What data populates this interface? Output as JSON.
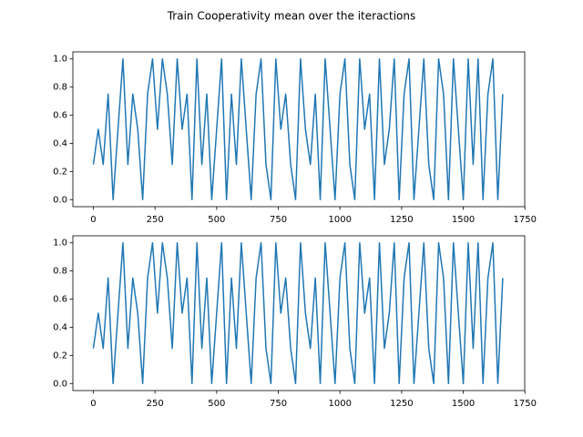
{
  "title": "Train Cooperativity mean over the iteractions",
  "chart_data": [
    {
      "type": "line",
      "color": "#1f77b4",
      "x": [
        0,
        20,
        40,
        60,
        80,
        100,
        120,
        140,
        160,
        180,
        200,
        220,
        240,
        260,
        280,
        300,
        320,
        340,
        360,
        380,
        400,
        420,
        440,
        460,
        480,
        500,
        520,
        540,
        560,
        580,
        600,
        620,
        640,
        660,
        680,
        700,
        720,
        740,
        760,
        780,
        800,
        820,
        840,
        860,
        880,
        900,
        920,
        940,
        960,
        980,
        1000,
        1020,
        1040,
        1060,
        1080,
        1100,
        1120,
        1140,
        1160,
        1180,
        1200,
        1220,
        1240,
        1260,
        1280,
        1300,
        1320,
        1340,
        1360,
        1380,
        1400,
        1420,
        1440,
        1460,
        1480,
        1500,
        1520,
        1540,
        1560,
        1580,
        1600,
        1620,
        1640,
        1660
      ],
      "values": [
        0.25,
        0.5,
        0.25,
        0.75,
        0,
        0.5,
        1,
        0.25,
        0.75,
        0.5,
        0,
        0.75,
        1,
        0.5,
        1,
        0.75,
        0.25,
        1,
        0.5,
        0.75,
        0,
        1,
        0.25,
        0.75,
        0,
        0.5,
        1,
        0,
        0.75,
        0.25,
        1,
        0.5,
        0,
        0.75,
        1,
        0.25,
        0,
        1,
        0.5,
        0.75,
        0.25,
        0,
        1,
        0.5,
        0.25,
        0.75,
        0,
        1,
        0.5,
        0,
        0.75,
        1,
        0.25,
        0,
        1,
        0.5,
        0.75,
        0,
        1,
        0.25,
        0.5,
        1,
        0,
        0.75,
        1,
        0,
        0.5,
        1,
        0.25,
        0,
        1,
        0.75,
        0,
        1,
        0.5,
        0,
        1,
        0.25,
        1,
        0,
        0.75,
        1,
        0,
        0.75
      ],
      "xlim": [
        -83,
        1749
      ],
      "ylim": [
        -0.05,
        1.05
      ],
      "xticks": [
        0,
        250,
        500,
        750,
        1000,
        1250,
        1500,
        1750
      ],
      "yticks": [
        {
          "value": 0,
          "label": "0.0"
        },
        0.2,
        0.4,
        0.6,
        0.8,
        {
          "value": 1,
          "label": "1.0"
        }
      ]
    },
    {
      "type": "line",
      "color": "#1f77b4",
      "x": [
        0,
        20,
        40,
        60,
        80,
        100,
        120,
        140,
        160,
        180,
        200,
        220,
        240,
        260,
        280,
        300,
        320,
        340,
        360,
        380,
        400,
        420,
        440,
        460,
        480,
        500,
        520,
        540,
        560,
        580,
        600,
        620,
        640,
        660,
        680,
        700,
        720,
        740,
        760,
        780,
        800,
        820,
        840,
        860,
        880,
        900,
        920,
        940,
        960,
        980,
        1000,
        1020,
        1040,
        1060,
        1080,
        1100,
        1120,
        1140,
        1160,
        1180,
        1200,
        1220,
        1240,
        1260,
        1280,
        1300,
        1320,
        1340,
        1360,
        1380,
        1400,
        1420,
        1440,
        1460,
        1480,
        1500,
        1520,
        1540,
        1560,
        1580,
        1600,
        1620,
        1640,
        1660
      ],
      "values": [
        0.25,
        0.5,
        0.25,
        0.75,
        0,
        0.5,
        1,
        0.25,
        0.75,
        0.5,
        0,
        0.75,
        1,
        0.5,
        1,
        0.75,
        0.25,
        1,
        0.5,
        0.75,
        0,
        1,
        0.25,
        0.75,
        0,
        0.5,
        1,
        0,
        0.75,
        0.25,
        1,
        0.5,
        0,
        0.75,
        1,
        0.25,
        0,
        1,
        0.5,
        0.75,
        0.25,
        0,
        1,
        0.5,
        0.25,
        0.75,
        0,
        1,
        0.5,
        0,
        0.75,
        1,
        0.25,
        0,
        1,
        0.5,
        0.75,
        0,
        1,
        0.25,
        0.5,
        1,
        0,
        0.75,
        1,
        0,
        0.5,
        1,
        0.25,
        0,
        1,
        0.75,
        0,
        1,
        0.5,
        0,
        1,
        0.25,
        1,
        0,
        0.75,
        1,
        0,
        0.75
      ],
      "xlim": [
        -83,
        1749
      ],
      "ylim": [
        -0.05,
        1.05
      ],
      "xticks": [
        0,
        250,
        500,
        750,
        1000,
        1250,
        1500,
        1750
      ],
      "yticks": [
        {
          "value": 0,
          "label": "0.0"
        },
        0.2,
        0.4,
        0.6,
        0.8,
        {
          "value": 1,
          "label": "1.0"
        }
      ]
    }
  ]
}
